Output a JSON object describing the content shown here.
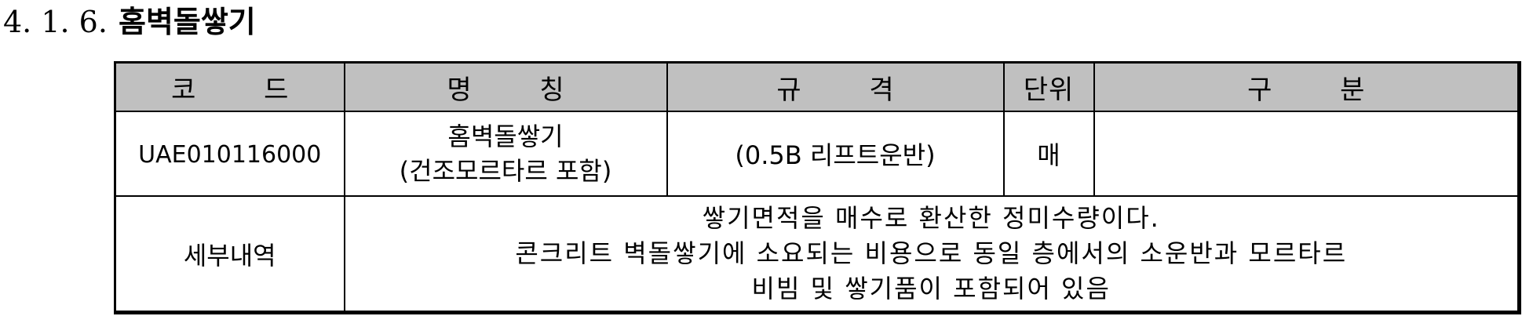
{
  "heading": {
    "number": "4. 1. 6.",
    "title": "홈벽돌쌓기"
  },
  "table": {
    "headers": {
      "code": "코 드",
      "name": "명 칭",
      "spec": "규 격",
      "unit": "단위",
      "category": "구 분"
    },
    "item": {
      "code": "UAE010116000",
      "name_line1": "홈벽돌쌓기",
      "name_line2": "(건조모르타르 포함)",
      "spec": "(0.5B 리프트운반)",
      "unit": "매",
      "category": ""
    },
    "detail": {
      "label": "세부내역",
      "lines": [
        "쌓기면적을 매수로 환산한 정미수량이다.",
        "콘크리트 벽돌쌓기에 소요되는 비용으로 동일 층에서의 소운반과 모르타르",
        "비빔 및 쌓기품이 포함되어 있음"
      ]
    }
  }
}
